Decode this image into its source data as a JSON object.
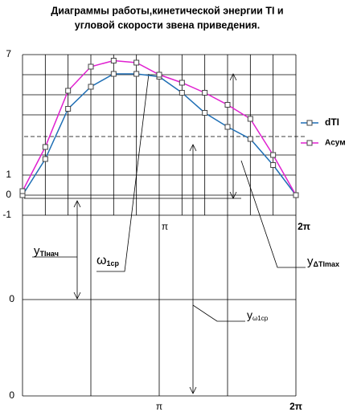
{
  "chart_data": {
    "type": "line",
    "title": [
      "Диаграммы работы,кинетической энергии TI и",
      "угловой скорости звена приведения."
    ],
    "x": [
      0,
      0.5236,
      1.0472,
      1.5708,
      2.0944,
      2.618,
      3.1416,
      3.6652,
      4.1888,
      4.7124,
      5.236,
      5.7596,
      6.2832
    ],
    "xlim": [
      0,
      6.2832
    ],
    "xticks": [
      {
        "value": 3.1416,
        "label": "π"
      },
      {
        "value": 6.2832,
        "label": "2π"
      }
    ],
    "ylim": [
      -1,
      7
    ],
    "yticks": [
      -1,
      0,
      1,
      7
    ],
    "grid": true,
    "legend": "right",
    "series": [
      {
        "name": "dTI",
        "color": "#1f6fb5",
        "values": [
          0,
          1.8,
          4.3,
          5.4,
          6.04,
          6.04,
          5.9,
          5.1,
          4.1,
          3.4,
          2.8,
          1.5,
          0
        ]
      },
      {
        "name": "Aсум",
        "color": "#e020d0",
        "values": [
          0.2,
          2.4,
          5.2,
          6.4,
          6.7,
          6.6,
          6.0,
          5.6,
          5.1,
          4.5,
          3.8,
          2.0,
          0
        ]
      }
    ]
  },
  "annotations": {
    "y_ti_start": {
      "main": "y",
      "sub": "TIнач"
    },
    "omega": {
      "main": "ω",
      "sub": "1ср"
    },
    "y_dti_max": {
      "main": "y",
      "sub": "ΔTImax"
    },
    "y_omega": {
      "main": "y",
      "sub": "ω1ср"
    }
  },
  "lower_scale": {
    "zero_labels": [
      "0",
      "0"
    ],
    "x_labels": [
      "π",
      "2π"
    ]
  }
}
